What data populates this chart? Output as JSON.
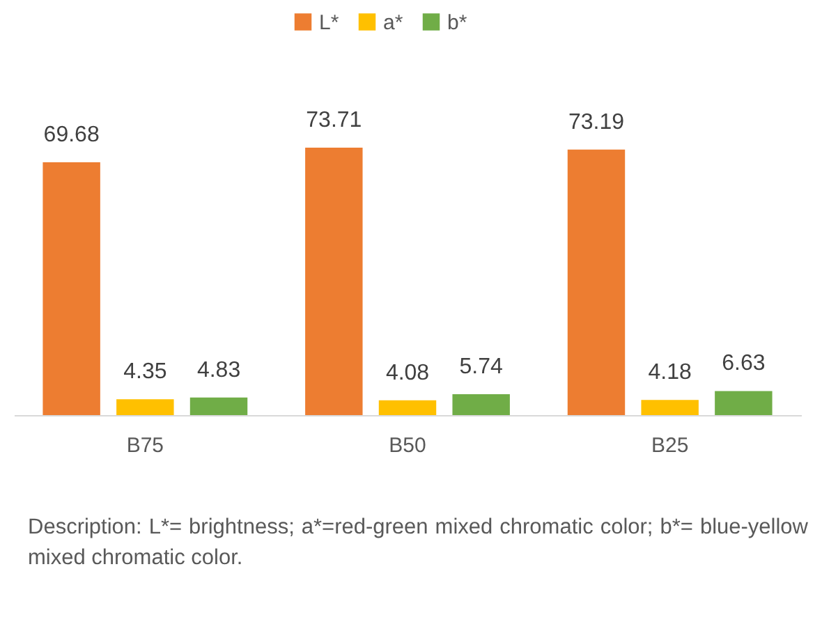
{
  "chart_data": {
    "type": "bar",
    "categories": [
      "B75",
      "B50",
      "B25"
    ],
    "series": [
      {
        "name": "L*",
        "color": "#ed7d31",
        "values": [
          69.68,
          73.71,
          73.19
        ]
      },
      {
        "name": "a*",
        "color": "#ffc000",
        "values": [
          4.35,
          4.08,
          4.18
        ]
      },
      {
        "name": "b*",
        "color": "#70ad47",
        "values": [
          4.83,
          5.74,
          6.63
        ]
      }
    ],
    "data_labels": true,
    "legend": "top",
    "annotations": [
      "Description: L*= brightness; a*=red-green mixed chromatic color; b*= blue-yellow mixed chromatic color."
    ]
  }
}
